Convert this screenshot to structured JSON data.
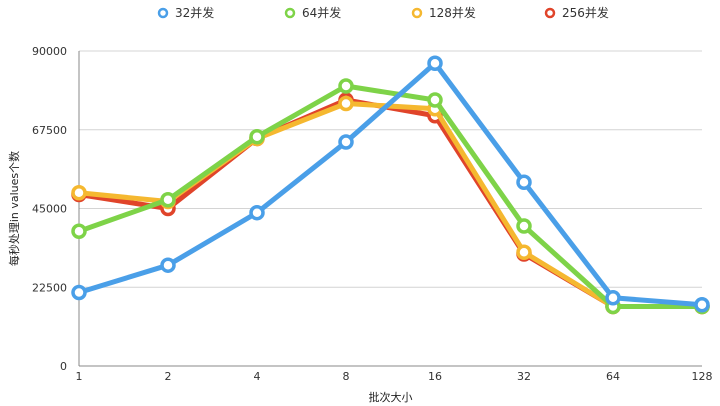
{
  "chart_data": {
    "type": "line",
    "xlabel": "批次大小",
    "ylabel": "每秒处理in values个数",
    "categories": [
      "1",
      "2",
      "4",
      "8",
      "16",
      "32",
      "64",
      "128"
    ],
    "yticks": [
      "0",
      "22500",
      "45000",
      "67500",
      "90000"
    ],
    "ylim": [
      0,
      90000
    ],
    "grid": true,
    "legend_position": "top",
    "series": [
      {
        "name": "32并发",
        "color": "#4a9fe8",
        "values": [
          21000,
          28800,
          43800,
          64000,
          86500,
          52500,
          19500,
          17500
        ]
      },
      {
        "name": "64并发",
        "color": "#7ed348",
        "values": [
          38500,
          47500,
          65500,
          80000,
          76000,
          40000,
          17000,
          17000
        ]
      },
      {
        "name": "128并发",
        "color": "#f5b830",
        "values": [
          49500,
          47000,
          65000,
          75000,
          73500,
          32500,
          17000,
          17000
        ]
      },
      {
        "name": "256并发",
        "color": "#e0442a",
        "values": [
          49000,
          45000,
          65000,
          76000,
          71500,
          32000,
          17000,
          17000
        ]
      }
    ]
  }
}
